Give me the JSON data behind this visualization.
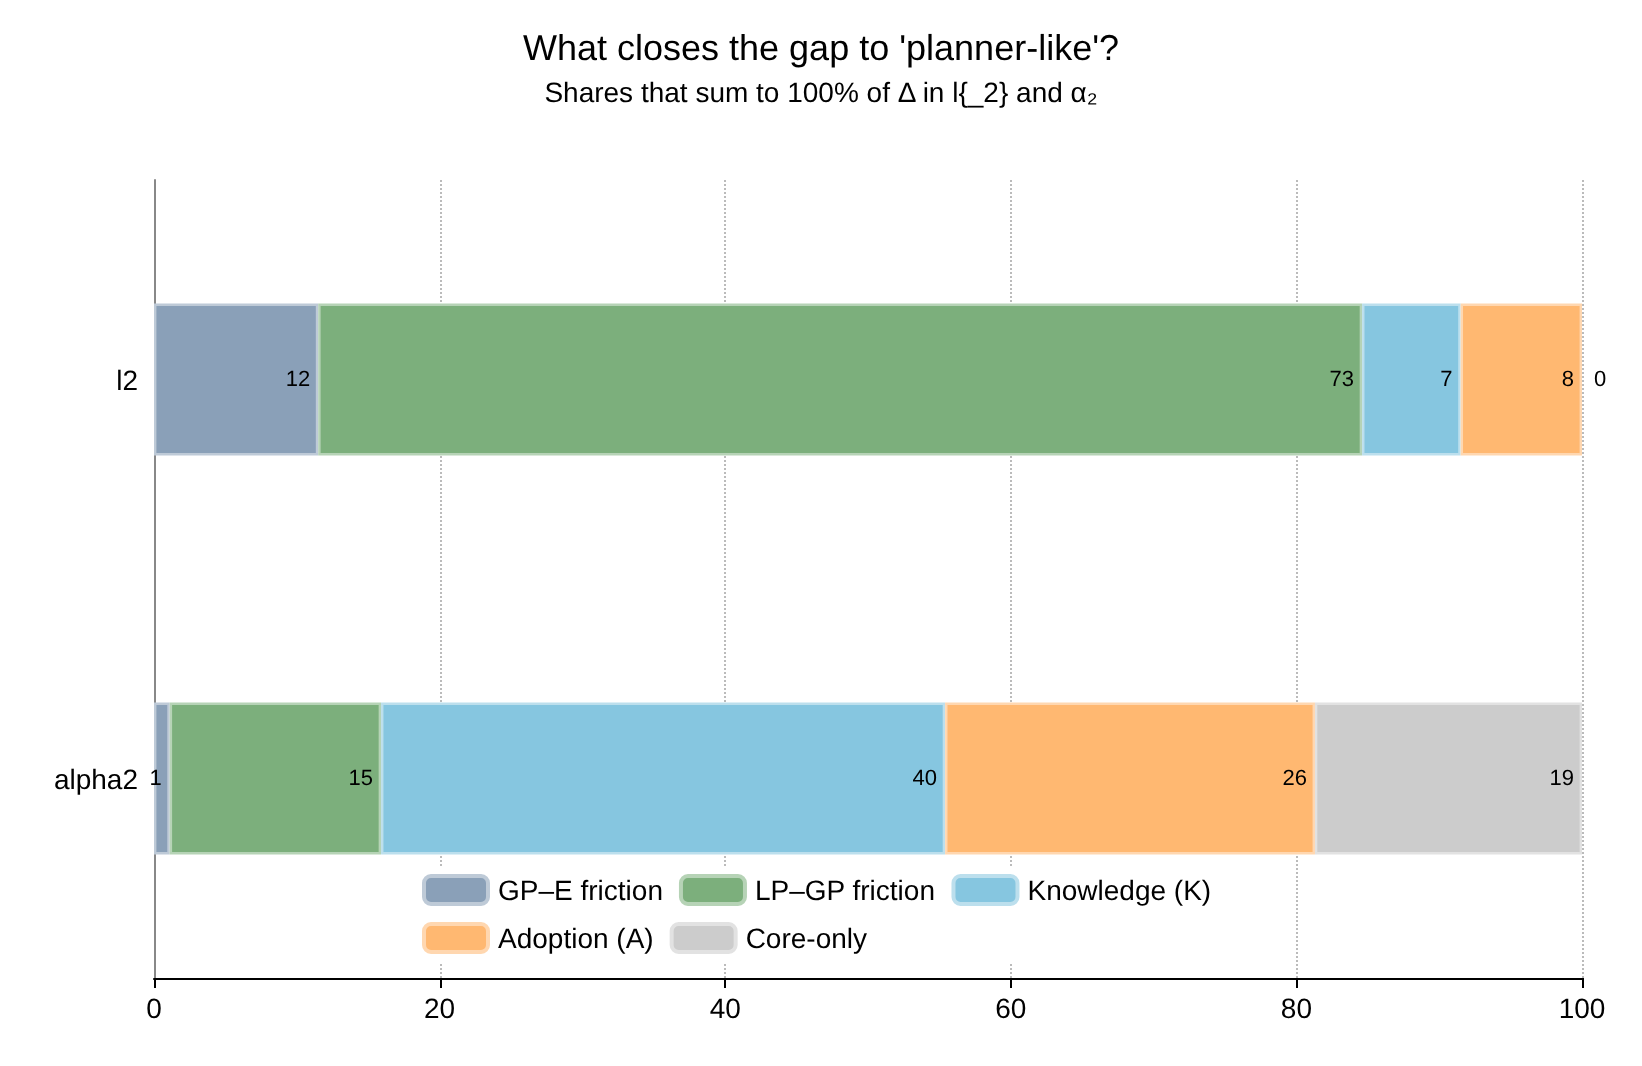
{
  "chart_data": {
    "type": "bar",
    "orientation": "horizontal",
    "stacked": true,
    "title": "What closes the gap to 'planner-like'?",
    "subtitle": "Shares that sum to 100% of Δ in l{_2} and α₂",
    "categories": [
      "l2",
      "alpha2"
    ],
    "series": [
      {
        "name": "GP–E friction",
        "color": "#8aa0b8",
        "values": [
          11.5,
          1.1
        ],
        "value_labels": [
          "12",
          "1"
        ]
      },
      {
        "name": "LP–GP friction",
        "color": "#7caf7c",
        "values": [
          73.1,
          14.8
        ],
        "value_labels": [
          "73",
          "15"
        ]
      },
      {
        "name": "Knowledge (K)",
        "color": "#86c6e0",
        "values": [
          6.9,
          39.5
        ],
        "value_labels": [
          "7",
          "40"
        ]
      },
      {
        "name": "Adoption (A)",
        "color": "#ffb871",
        "values": [
          8.5,
          25.9
        ],
        "value_labels": [
          "8",
          "26"
        ]
      },
      {
        "name": "Core-only",
        "color": "#cccccc",
        "values": [
          0,
          18.7
        ],
        "value_labels": [
          "0",
          "19"
        ]
      }
    ],
    "xlim": [
      0,
      100
    ],
    "xticks": [
      0,
      20,
      40,
      60,
      80,
      100
    ],
    "grid": "x",
    "legend": "bottom"
  }
}
